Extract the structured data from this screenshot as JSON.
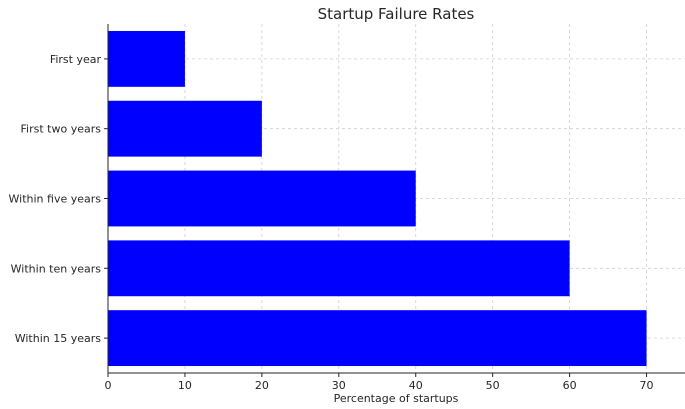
{
  "chart_data": {
    "type": "bar",
    "orientation": "horizontal",
    "title": "Startup Failure Rates",
    "xlabel": "Percentage of startups",
    "ylabel": "",
    "categories": [
      "First year",
      "First two years",
      "Within five years",
      "Within ten years",
      "Within 15 years"
    ],
    "values": [
      10,
      20,
      40,
      60,
      70
    ],
    "xlim": [
      0,
      75
    ],
    "xticks": [
      0,
      10,
      20,
      30,
      40,
      50,
      60,
      70
    ],
    "grid": true,
    "bar_color": "#0000ff",
    "category_order": "top-to-bottom"
  }
}
